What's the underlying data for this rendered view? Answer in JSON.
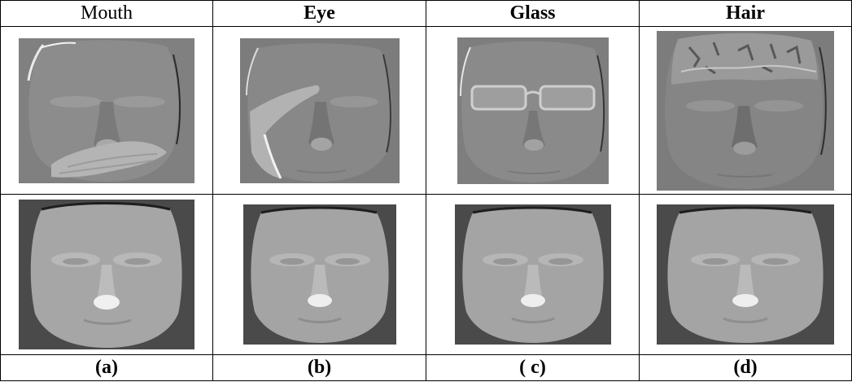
{
  "headers": [
    "Mouth",
    "Eye",
    "Glass",
    "Hair"
  ],
  "labels": [
    "(a)",
    "(b)",
    "( c)",
    "(d)"
  ],
  "colors": {
    "border": "#000000",
    "depth_background": "#7f7f7f",
    "shaded_background": "#4a4a4a"
  }
}
